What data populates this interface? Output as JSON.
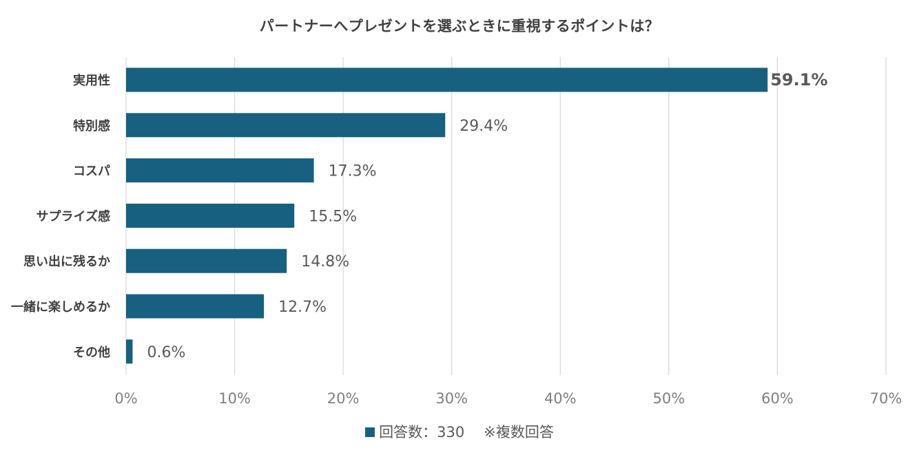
{
  "chart_data": {
    "type": "bar",
    "orientation": "horizontal",
    "title": "パートナーへプレゼントを選ぶときに重視するポイントは？",
    "categories": [
      "実用性",
      "特別感",
      "コスパ",
      "サプライズ感",
      "思い出に残るか",
      "一緒に楽しめるか",
      "その他"
    ],
    "values": [
      59.1,
      29.4,
      17.3,
      15.5,
      14.8,
      12.7,
      0.6
    ],
    "value_labels": [
      "59.1%",
      "29.4%",
      "17.3%",
      "15.5%",
      "14.8%",
      "12.7%",
      "0.6%"
    ],
    "highlight_index": 0,
    "xlim": [
      0,
      70
    ],
    "xticks": [
      0,
      10,
      20,
      30,
      40,
      50,
      60,
      70
    ],
    "xtick_labels": [
      "0%",
      "10%",
      "20%",
      "30%",
      "40%",
      "50%",
      "60%",
      "70%"
    ],
    "grid": true,
    "legend": {
      "series_name": "回答数：330",
      "note": "※複数回答",
      "placement": "bottom"
    },
    "colors": {
      "bar": "#17607f",
      "highlight_label": "#e00000",
      "grid": "#d9d9d9"
    }
  }
}
